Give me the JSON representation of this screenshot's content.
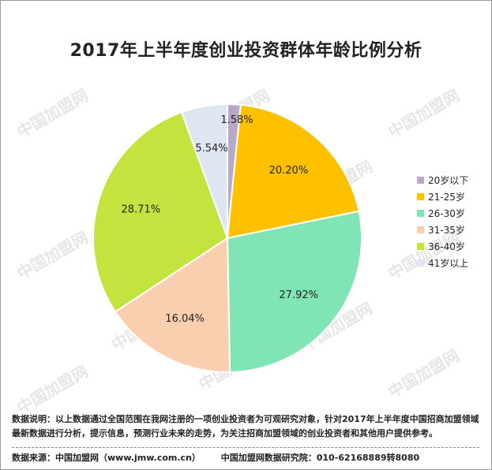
{
  "chart_data": {
    "type": "pie",
    "title": "2017年上半年度创业投资群体年龄比例分析",
    "slices": [
      {
        "label": "20岁以下",
        "value": 1.58,
        "display": "1.58%",
        "color": "#b8a9c9"
      },
      {
        "label": "21-25岁",
        "value": 20.2,
        "display": "20.20%",
        "color": "#ffc000"
      },
      {
        "label": "26-30岁",
        "value": 27.92,
        "display": "27.92%",
        "color": "#7fe5b4"
      },
      {
        "label": "31-35岁",
        "value": 16.04,
        "display": "16.04%",
        "color": "#f9cfb0"
      },
      {
        "label": "36-40岁",
        "value": 28.71,
        "display": "28.71%",
        "color": "#c3e43f"
      },
      {
        "label": "41岁以上",
        "value": 5.54,
        "display": "5.54%",
        "color": "#dde6f1"
      }
    ],
    "legend_position": "right"
  },
  "note": "数据说明：以上数据通过全国范围在我网注册的一项创业投资者为可观研究对象，针对2017年上半年度中国招商加盟领域最新数据进行分析，提示信息，预测行业未来的走势，为关注招商加盟领域的创业投资者和其他用户提供参考。",
  "footer": {
    "source": "数据来源：中国加盟网（www.jmw.com.cn）",
    "institute": "中国加盟网数据研究院：010-62168889转8080"
  },
  "watermark": "中国加盟网"
}
